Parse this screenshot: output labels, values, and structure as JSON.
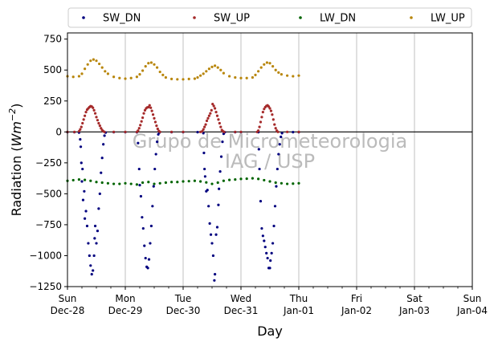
{
  "chart_data": {
    "type": "scatter",
    "xlabel": "Day",
    "ylabel_main": "Radiation (",
    "ylabel_unit": "Wm",
    "ylabel_exp": "−2",
    "ylabel_close": ")",
    "ylim": [
      -1250,
      800
    ],
    "xlim": [
      0,
      7
    ],
    "yticks": [
      {
        "value": 750,
        "label": "750"
      },
      {
        "value": 500,
        "label": "500"
      },
      {
        "value": 250,
        "label": "250"
      },
      {
        "value": 0,
        "label": "0"
      },
      {
        "value": -250,
        "label": "−250"
      },
      {
        "value": -500,
        "label": "−500"
      },
      {
        "value": -750,
        "label": "−750"
      },
      {
        "value": -1000,
        "label": "−1000"
      },
      {
        "value": -1250,
        "label": "−1250"
      }
    ],
    "xticks": [
      {
        "value": 0,
        "day": "Sun",
        "date": "Dec-28"
      },
      {
        "value": 1,
        "day": "Mon",
        "date": "Dec-29"
      },
      {
        "value": 2,
        "day": "Tue",
        "date": "Dec-30"
      },
      {
        "value": 3,
        "day": "Wed",
        "date": "Dec-31"
      },
      {
        "value": 4,
        "day": "Thu",
        "date": "Jan-01"
      },
      {
        "value": 5,
        "day": "Fri",
        "date": "Jan-02"
      },
      {
        "value": 6,
        "day": "Sat",
        "date": "Jan-03"
      },
      {
        "value": 7,
        "day": "Sun",
        "date": "Jan-04"
      }
    ],
    "grid": "vertical",
    "zero_line": true,
    "legend_position": "top",
    "watermark": [
      "Grupo de Micrometeorologia",
      "IAG / USP"
    ],
    "series": [
      {
        "name": "SW_DN",
        "color": "#00007f",
        "points": [
          [
            0.0,
            -2
          ],
          [
            0.12,
            -2
          ],
          [
            0.2,
            -5
          ],
          [
            0.22,
            -60
          ],
          [
            0.23,
            -120
          ],
          [
            0.24,
            -250
          ],
          [
            0.25,
            -400
          ],
          [
            0.26,
            -300
          ],
          [
            0.27,
            -550
          ],
          [
            0.29,
            -480
          ],
          [
            0.3,
            -700
          ],
          [
            0.32,
            -640
          ],
          [
            0.34,
            -760
          ],
          [
            0.36,
            -900
          ],
          [
            0.38,
            -1000
          ],
          [
            0.4,
            -1080
          ],
          [
            0.42,
            -1150
          ],
          [
            0.44,
            -1120
          ],
          [
            0.46,
            -1000
          ],
          [
            0.47,
            -860
          ],
          [
            0.48,
            -760
          ],
          [
            0.5,
            -900
          ],
          [
            0.52,
            -800
          ],
          [
            0.54,
            -620
          ],
          [
            0.56,
            -500
          ],
          [
            0.58,
            -330
          ],
          [
            0.6,
            -210
          ],
          [
            0.62,
            -100
          ],
          [
            0.64,
            -30
          ],
          [
            0.66,
            -5
          ],
          [
            0.8,
            -2
          ],
          [
            1.0,
            -2
          ],
          [
            1.2,
            -3
          ],
          [
            1.22,
            -90
          ],
          [
            1.24,
            -300
          ],
          [
            1.25,
            -430
          ],
          [
            1.27,
            -520
          ],
          [
            1.29,
            -690
          ],
          [
            1.31,
            -780
          ],
          [
            1.33,
            -920
          ],
          [
            1.35,
            -1020
          ],
          [
            1.37,
            -1090
          ],
          [
            1.39,
            -1100
          ],
          [
            1.41,
            -1030
          ],
          [
            1.43,
            -900
          ],
          [
            1.45,
            -760
          ],
          [
            1.47,
            -600
          ],
          [
            1.49,
            -440
          ],
          [
            1.51,
            -300
          ],
          [
            1.53,
            -180
          ],
          [
            1.55,
            -80
          ],
          [
            1.57,
            -20
          ],
          [
            1.59,
            -5
          ],
          [
            1.8,
            -2
          ],
          [
            2.0,
            -2
          ],
          [
            2.25,
            -2
          ],
          [
            2.35,
            -10
          ],
          [
            2.36,
            -170
          ],
          [
            2.37,
            -300
          ],
          [
            2.38,
            -360
          ],
          [
            2.4,
            -480
          ],
          [
            2.42,
            -470
          ],
          [
            2.44,
            -600
          ],
          [
            2.46,
            -740
          ],
          [
            2.48,
            -830
          ],
          [
            2.5,
            -900
          ],
          [
            2.52,
            -1000
          ],
          [
            2.54,
            -1200
          ],
          [
            2.55,
            -1150
          ],
          [
            2.57,
            -830
          ],
          [
            2.59,
            -770
          ],
          [
            2.61,
            -590
          ],
          [
            2.62,
            -460
          ],
          [
            2.64,
            -320
          ],
          [
            2.66,
            -200
          ],
          [
            2.68,
            -80
          ],
          [
            2.7,
            -15
          ],
          [
            2.72,
            -3
          ],
          [
            2.9,
            -2
          ],
          [
            3.0,
            -2
          ],
          [
            3.3,
            -2
          ],
          [
            3.31,
            -140
          ],
          [
            3.32,
            -300
          ],
          [
            3.34,
            -560
          ],
          [
            3.36,
            -780
          ],
          [
            3.38,
            -840
          ],
          [
            3.4,
            -880
          ],
          [
            3.42,
            -930
          ],
          [
            3.44,
            -980
          ],
          [
            3.46,
            -1020
          ],
          [
            3.48,
            -1100
          ],
          [
            3.5,
            -1100
          ],
          [
            3.51,
            -1040
          ],
          [
            3.53,
            -980
          ],
          [
            3.55,
            -900
          ],
          [
            3.57,
            -760
          ],
          [
            3.59,
            -600
          ],
          [
            3.61,
            -440
          ],
          [
            3.63,
            -300
          ],
          [
            3.65,
            -180
          ],
          [
            3.67,
            -100
          ],
          [
            3.69,
            -40
          ],
          [
            3.71,
            -10
          ],
          [
            3.9,
            -2
          ],
          [
            4.0,
            -2
          ]
        ]
      },
      {
        "name": "SW_UP",
        "color": "#a52a2a",
        "points": [
          [
            0.0,
            0
          ],
          [
            0.12,
            0
          ],
          [
            0.2,
            5
          ],
          [
            0.22,
            20
          ],
          [
            0.24,
            40
          ],
          [
            0.26,
            70
          ],
          [
            0.28,
            100
          ],
          [
            0.3,
            130
          ],
          [
            0.32,
            160
          ],
          [
            0.34,
            180
          ],
          [
            0.36,
            190
          ],
          [
            0.38,
            200
          ],
          [
            0.4,
            208
          ],
          [
            0.42,
            205
          ],
          [
            0.44,
            195
          ],
          [
            0.46,
            175
          ],
          [
            0.48,
            150
          ],
          [
            0.5,
            120
          ],
          [
            0.52,
            95
          ],
          [
            0.54,
            70
          ],
          [
            0.56,
            50
          ],
          [
            0.58,
            30
          ],
          [
            0.6,
            15
          ],
          [
            0.62,
            5
          ],
          [
            0.64,
            0
          ],
          [
            0.8,
            0
          ],
          [
            1.0,
            0
          ],
          [
            1.2,
            0
          ],
          [
            1.22,
            10
          ],
          [
            1.24,
            30
          ],
          [
            1.26,
            55
          ],
          [
            1.28,
            85
          ],
          [
            1.3,
            115
          ],
          [
            1.32,
            150
          ],
          [
            1.34,
            175
          ],
          [
            1.36,
            190
          ],
          [
            1.38,
            198
          ],
          [
            1.4,
            200
          ],
          [
            1.42,
            215
          ],
          [
            1.44,
            195
          ],
          [
            1.46,
            170
          ],
          [
            1.48,
            140
          ],
          [
            1.5,
            110
          ],
          [
            1.52,
            80
          ],
          [
            1.54,
            50
          ],
          [
            1.56,
            25
          ],
          [
            1.58,
            8
          ],
          [
            1.6,
            0
          ],
          [
            1.8,
            0
          ],
          [
            2.0,
            0
          ],
          [
            2.3,
            0
          ],
          [
            2.33,
            5
          ],
          [
            2.35,
            20
          ],
          [
            2.37,
            40
          ],
          [
            2.39,
            60
          ],
          [
            2.41,
            90
          ],
          [
            2.43,
            110
          ],
          [
            2.45,
            130
          ],
          [
            2.47,
            150
          ],
          [
            2.49,
            175
          ],
          [
            2.51,
            225
          ],
          [
            2.53,
            210
          ],
          [
            2.55,
            190
          ],
          [
            2.57,
            160
          ],
          [
            2.59,
            130
          ],
          [
            2.61,
            100
          ],
          [
            2.63,
            70
          ],
          [
            2.65,
            40
          ],
          [
            2.67,
            15
          ],
          [
            2.69,
            5
          ],
          [
            2.71,
            0
          ],
          [
            2.9,
            0
          ],
          [
            3.0,
            0
          ],
          [
            3.28,
            0
          ],
          [
            3.3,
            10
          ],
          [
            3.32,
            40
          ],
          [
            3.34,
            80
          ],
          [
            3.36,
            120
          ],
          [
            3.38,
            160
          ],
          [
            3.4,
            185
          ],
          [
            3.42,
            200
          ],
          [
            3.44,
            210
          ],
          [
            3.46,
            215
          ],
          [
            3.48,
            205
          ],
          [
            3.5,
            190
          ],
          [
            3.52,
            170
          ],
          [
            3.54,
            140
          ],
          [
            3.56,
            100
          ],
          [
            3.58,
            60
          ],
          [
            3.6,
            30
          ],
          [
            3.62,
            10
          ],
          [
            3.64,
            0
          ],
          [
            3.8,
            0
          ],
          [
            4.0,
            0
          ]
        ]
      },
      {
        "name": "LW_DN",
        "color": "#006400",
        "points": [
          [
            0.0,
            -395
          ],
          [
            0.1,
            -390
          ],
          [
            0.2,
            -385
          ],
          [
            0.3,
            -388
          ],
          [
            0.4,
            -395
          ],
          [
            0.5,
            -405
          ],
          [
            0.6,
            -410
          ],
          [
            0.7,
            -415
          ],
          [
            0.8,
            -420
          ],
          [
            0.9,
            -420
          ],
          [
            1.0,
            -415
          ],
          [
            1.1,
            -420
          ],
          [
            1.2,
            -425
          ],
          [
            1.3,
            -410
          ],
          [
            1.4,
            -405
          ],
          [
            1.5,
            -420
          ],
          [
            1.6,
            -415
          ],
          [
            1.7,
            -410
          ],
          [
            1.8,
            -405
          ],
          [
            1.9,
            -405
          ],
          [
            2.0,
            -400
          ],
          [
            2.1,
            -398
          ],
          [
            2.2,
            -395
          ],
          [
            2.3,
            -400
          ],
          [
            2.4,
            -408
          ],
          [
            2.5,
            -420
          ],
          [
            2.6,
            -410
          ],
          [
            2.7,
            -395
          ],
          [
            2.8,
            -388
          ],
          [
            2.9,
            -385
          ],
          [
            3.0,
            -380
          ],
          [
            3.1,
            -378
          ],
          [
            3.2,
            -375
          ],
          [
            3.3,
            -380
          ],
          [
            3.4,
            -390
          ],
          [
            3.5,
            -400
          ],
          [
            3.6,
            -410
          ],
          [
            3.7,
            -415
          ],
          [
            3.8,
            -420
          ],
          [
            3.9,
            -418
          ],
          [
            4.0,
            -415
          ]
        ]
      },
      {
        "name": "LW_UP",
        "color": "#b8860b",
        "points": [
          [
            0.0,
            450
          ],
          [
            0.1,
            445
          ],
          [
            0.2,
            450
          ],
          [
            0.25,
            470
          ],
          [
            0.3,
            510
          ],
          [
            0.35,
            545
          ],
          [
            0.4,
            575
          ],
          [
            0.45,
            585
          ],
          [
            0.5,
            575
          ],
          [
            0.55,
            550
          ],
          [
            0.6,
            520
          ],
          [
            0.65,
            490
          ],
          [
            0.7,
            470
          ],
          [
            0.8,
            445
          ],
          [
            0.9,
            435
          ],
          [
            1.0,
            430
          ],
          [
            1.1,
            435
          ],
          [
            1.2,
            445
          ],
          [
            1.25,
            465
          ],
          [
            1.3,
            495
          ],
          [
            1.35,
            530
          ],
          [
            1.4,
            555
          ],
          [
            1.45,
            560
          ],
          [
            1.5,
            545
          ],
          [
            1.55,
            520
          ],
          [
            1.6,
            485
          ],
          [
            1.65,
            460
          ],
          [
            1.7,
            440
          ],
          [
            1.8,
            428
          ],
          [
            1.9,
            425
          ],
          [
            2.0,
            425
          ],
          [
            2.1,
            428
          ],
          [
            2.2,
            430
          ],
          [
            2.25,
            440
          ],
          [
            2.3,
            455
          ],
          [
            2.35,
            470
          ],
          [
            2.4,
            490
          ],
          [
            2.45,
            510
          ],
          [
            2.5,
            525
          ],
          [
            2.55,
            535
          ],
          [
            2.6,
            520
          ],
          [
            2.65,
            500
          ],
          [
            2.7,
            475
          ],
          [
            2.8,
            450
          ],
          [
            2.9,
            440
          ],
          [
            3.0,
            435
          ],
          [
            3.1,
            435
          ],
          [
            3.2,
            440
          ],
          [
            3.25,
            460
          ],
          [
            3.3,
            490
          ],
          [
            3.35,
            520
          ],
          [
            3.4,
            545
          ],
          [
            3.45,
            560
          ],
          [
            3.5,
            555
          ],
          [
            3.55,
            530
          ],
          [
            3.6,
            500
          ],
          [
            3.65,
            480
          ],
          [
            3.7,
            465
          ],
          [
            3.8,
            455
          ],
          [
            3.9,
            450
          ],
          [
            4.0,
            455
          ]
        ]
      }
    ]
  }
}
